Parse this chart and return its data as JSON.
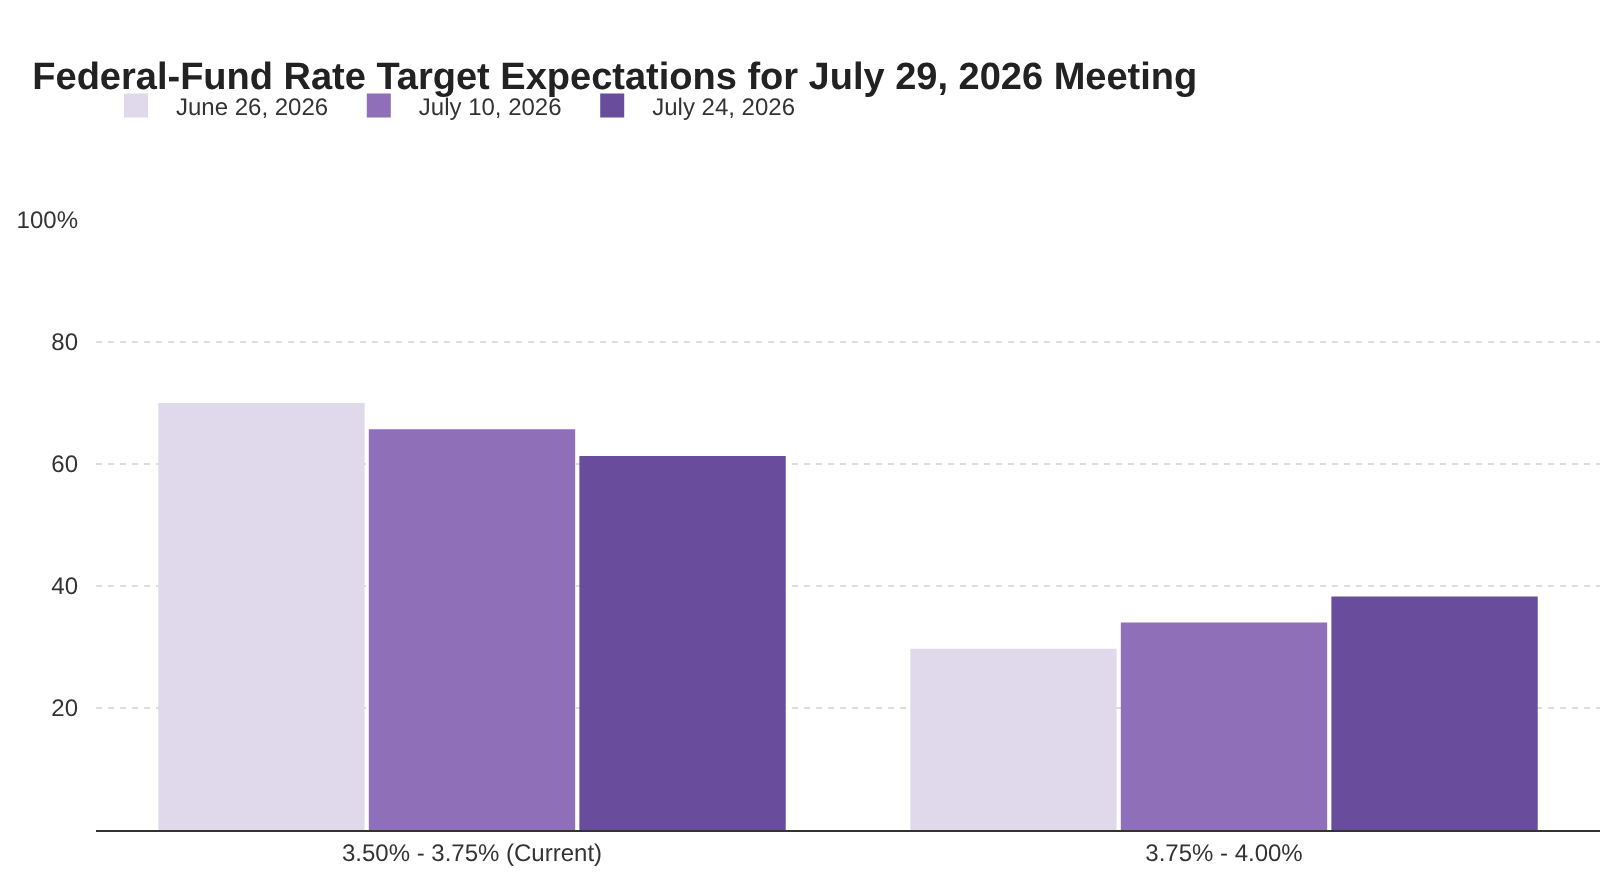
{
  "chart_data": {
    "type": "bar",
    "title": "Federal-Fund Rate Target Expectations for July 29, 2026 Meeting",
    "categories": [
      "3.50% - 3.75% (Current)",
      "3.75% - 4.00%"
    ],
    "series": [
      {
        "name": "June 26, 2026",
        "color": "#e0d9ec",
        "values": [
          70,
          29.7
        ]
      },
      {
        "name": "July 10, 2026",
        "color": "#8e6fb8",
        "values": [
          65.7,
          34
        ]
      },
      {
        "name": "July 24, 2026",
        "color": "#6a4c9c",
        "values": [
          61.3,
          38.3
        ]
      }
    ],
    "ylim": [
      0,
      100
    ],
    "yticks": [
      20,
      40,
      60,
      80,
      {
        "value": 100,
        "label": "100%"
      }
    ],
    "grid": "y",
    "legend": "top left"
  }
}
